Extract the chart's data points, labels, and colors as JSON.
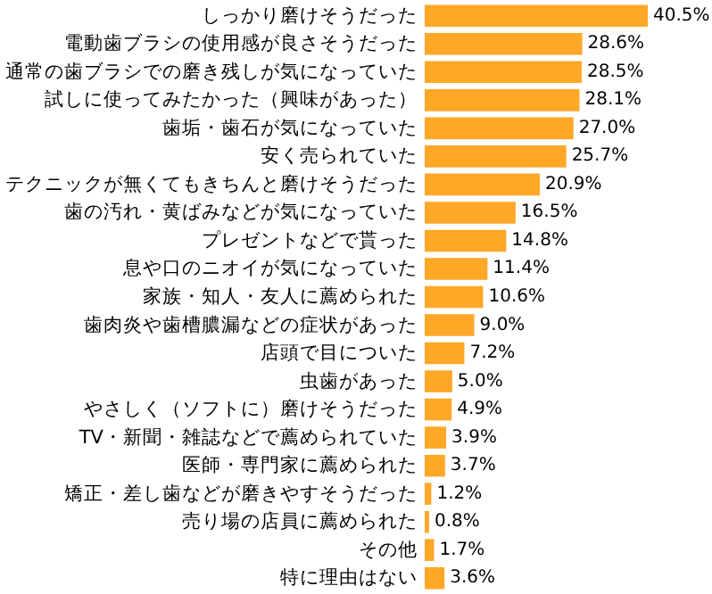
{
  "chart_data": {
    "type": "bar",
    "orientation": "horizontal",
    "color": "#ffa726",
    "data_labels": true,
    "categories": [
      "しっかり磨けそうだった",
      "電動歯ブラシの使用感が良さそうだった",
      "通常の歯ブラシでの磨き残しが気になっていた",
      "試しに使ってみたかった（興味があった）",
      "歯垢・歯石が気になっていた",
      "安く売られていた",
      "テクニックが無くてもきちんと磨けそうだった",
      "歯の汚れ・黄ばみなどが気になっていた",
      "プレゼントなどで貰った",
      "息や口のニオイが気になっていた",
      "家族・知人・友人に薦められた",
      "歯肉炎や歯槽膿漏などの症状があった",
      "店頭で目についた",
      "虫歯があった",
      "やさしく（ソフトに）磨けそうだった",
      "TV・新聞・雑誌などで薦められていた",
      "医師・専門家に薦められた",
      "矯正・差し歯などが磨きやすそうだった",
      "売り場の店員に薦められた",
      "その他",
      "特に理由はない"
    ],
    "values": [
      40.5,
      28.6,
      28.5,
      28.1,
      27.0,
      25.7,
      20.9,
      16.5,
      14.8,
      11.4,
      10.6,
      9.0,
      7.2,
      5.0,
      4.9,
      3.9,
      3.7,
      1.2,
      0.8,
      1.7,
      3.6
    ],
    "value_labels": [
      "40.5%",
      "28.6%",
      "28.5%",
      "28.1%",
      "27.0%",
      "25.7%",
      "20.9%",
      "16.5%",
      "14.8%",
      "11.4%",
      "10.6%",
      "9.0%",
      "7.2%",
      "5.0%",
      "4.9%",
      "3.9%",
      "3.7%",
      "1.2%",
      "0.8%",
      "1.7%",
      "3.6%"
    ]
  }
}
